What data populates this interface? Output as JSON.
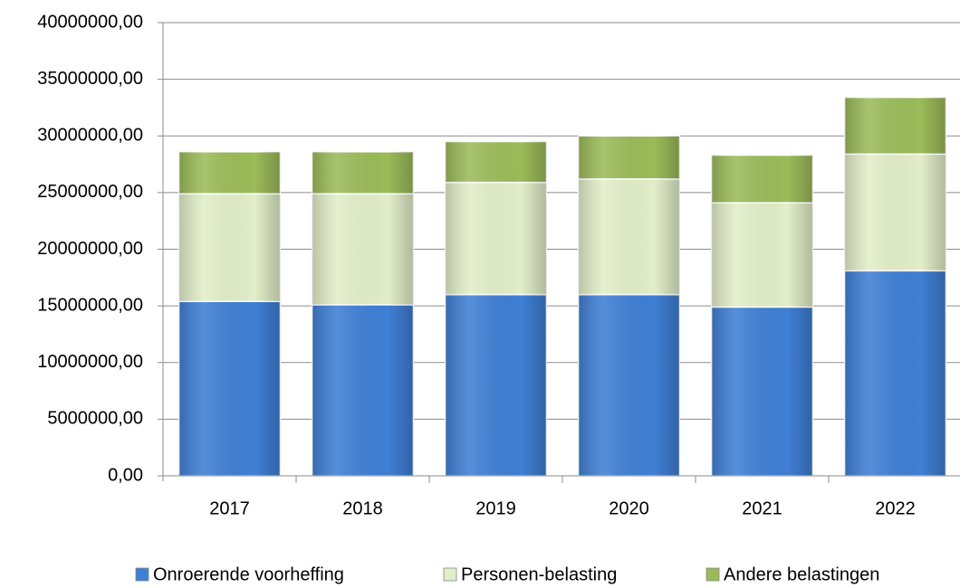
{
  "chart_data": {
    "type": "stacked_bar",
    "categories": [
      "2017",
      "2018",
      "2019",
      "2020",
      "2021",
      "2022"
    ],
    "series": [
      {
        "name": "Onroerende voorheffing",
        "color": "#3f7fd4",
        "values": [
          15400000,
          15100000,
          16000000,
          16000000,
          14900000,
          18100000
        ]
      },
      {
        "name": "Personen-belasting",
        "color": "#e2eec8",
        "values": [
          9500000,
          9800000,
          9900000,
          10200000,
          9200000,
          10300000
        ]
      },
      {
        "name": "Andere belastingen",
        "color": "#9bbb59",
        "values": [
          3700000,
          3700000,
          3600000,
          3800000,
          4200000,
          5000000
        ]
      }
    ],
    "ylim": [
      0,
      40000000
    ],
    "yticks": [
      {
        "value": 0,
        "label": "0,00"
      },
      {
        "value": 5000000,
        "label": "5000000,00"
      },
      {
        "value": 10000000,
        "label": "10000000,00"
      },
      {
        "value": 15000000,
        "label": "15000000,00"
      },
      {
        "value": 20000000,
        "label": "20000000,00"
      },
      {
        "value": 25000000,
        "label": "25000000,00"
      },
      {
        "value": 30000000,
        "label": "30000000,00"
      },
      {
        "value": 35000000,
        "label": "35000000,00"
      },
      {
        "value": 40000000,
        "label": "40000000,00"
      }
    ],
    "grid": true,
    "legend": "bottom"
  }
}
